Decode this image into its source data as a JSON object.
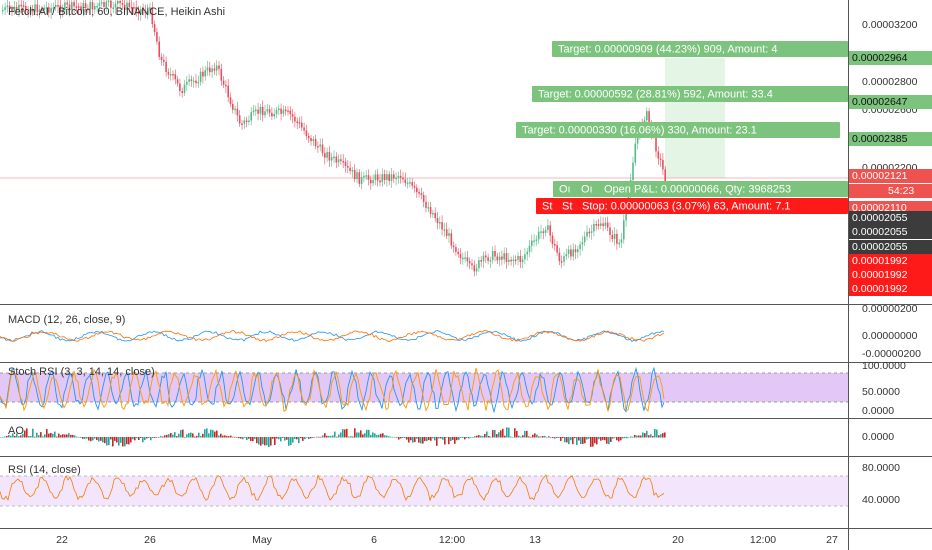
{
  "header": {
    "title": "Fetch.AI / Bitcoin, 60, BINANCE, Heikin Ashi"
  },
  "panels": {
    "macd": "MACD (12, 26, close, 9)",
    "stoch": "Stoch RSI (3, 3, 14, 14, close)",
    "ao": "AO",
    "rsi": "RSI (14, close)"
  },
  "price_axis": {
    "main": [
      "0.00003200",
      "0.00002800",
      "0.00002600",
      "0.00002200"
    ],
    "badges": [
      {
        "text": "0.00002964",
        "kind": "green"
      },
      {
        "text": "0.00002647",
        "kind": "green"
      },
      {
        "text": "0.00002385",
        "kind": "green"
      },
      {
        "text": "0.00002121",
        "kind": "red"
      },
      {
        "text": "54:23",
        "kind": "red"
      },
      {
        "text": "0.00002110",
        "kind": "red"
      },
      {
        "text": "0.00002055",
        "kind": "dark"
      },
      {
        "text": "0.00002055",
        "kind": "dark"
      },
      {
        "text": "0.00002055",
        "kind": "dark"
      },
      {
        "text": "0.00001992",
        "kind": "stop"
      },
      {
        "text": "0.00001992",
        "kind": "stop"
      },
      {
        "text": "0.00001992",
        "kind": "stop"
      }
    ],
    "macd": [
      "0.00000200",
      "0.00000000",
      "-0.00000200"
    ],
    "stoch": [
      "100.0000",
      "50.0000",
      "0.0000"
    ],
    "ao": [
      "0.0000"
    ],
    "rsi": [
      "80.0000",
      "40.0000"
    ]
  },
  "time_axis": [
    "22",
    "26",
    "May",
    "6",
    "12:00",
    "13",
    "20",
    "12:00",
    "27"
  ],
  "orders": {
    "targets": [
      "Target: 0.00000909 (44.23%) 909, Amount: 4",
      "Target: 0.00000592 (28.81%) 592, Amount: 33.4",
      "Target: 0.00000330 (16.06%) 330, Amount: 23.1"
    ],
    "open_short": [
      "Oı",
      "Oı"
    ],
    "open": "Open P&L: 0.00000066, Qty: 3968253",
    "stop_short": [
      "St",
      "St"
    ],
    "stop": "Stop: 0.00000063 (3.07%) 63, Amount: 7.1"
  }
}
